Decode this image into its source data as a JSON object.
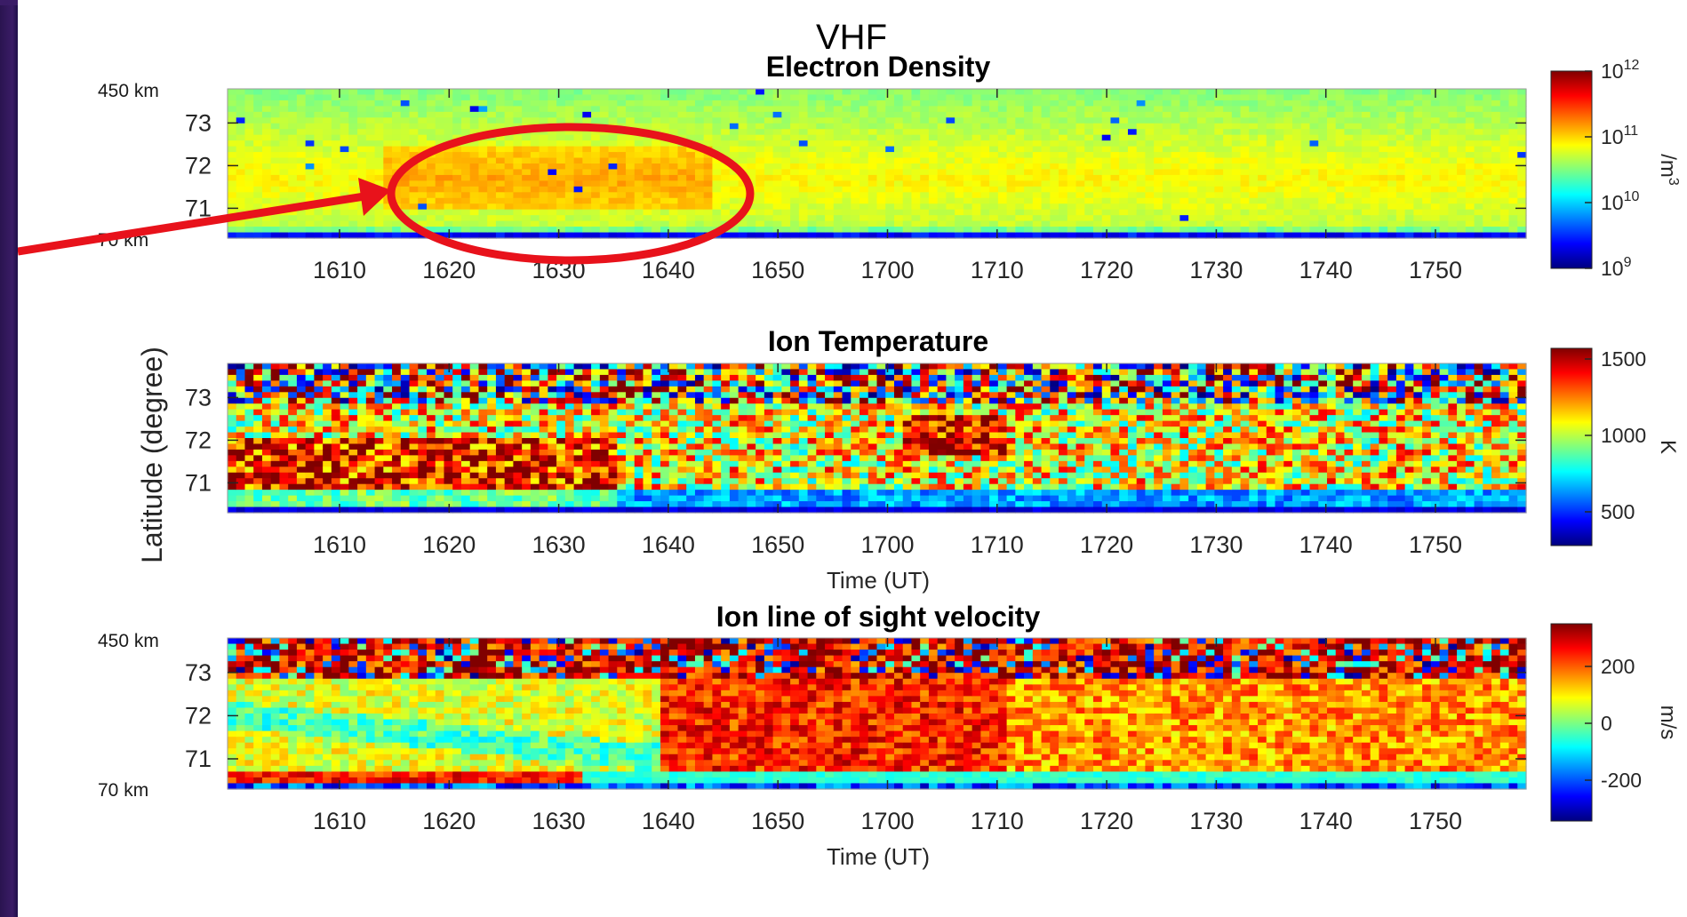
{
  "figure": {
    "main_title": "VHF",
    "annotation": "highlighted region (red ellipse with arrow) around 1620–1640 UT at ~71–72°"
  },
  "colors": {
    "annotation_red": "#e8121b",
    "axis": "#262626",
    "jet": [
      "#00007f",
      "#0000ff",
      "#007fff",
      "#00ffff",
      "#7fff7f",
      "#ffff00",
      "#ff7f00",
      "#ff0000",
      "#7f0000"
    ]
  },
  "chart_data": [
    {
      "type": "heatmap",
      "title": "Electron Density",
      "x_ticks": [
        "1610",
        "1620",
        "1630",
        "1640",
        "1650",
        "1700",
        "1710",
        "1720",
        "1730",
        "1740",
        "1750"
      ],
      "y_ticks": [
        "73",
        "72",
        "71"
      ],
      "range_labels": [
        "450 km",
        "70 km"
      ],
      "colorbar": {
        "ticks": [
          "10^12",
          "10^11",
          "10^10",
          "10^9"
        ],
        "label": "/m^3",
        "scale": "log"
      },
      "x_range_ut": [
        "1600",
        "1759"
      ],
      "y_range_deg": [
        70.3,
        73.8
      ]
    },
    {
      "type": "heatmap",
      "title": "Ion Temperature",
      "x_ticks": [
        "1610",
        "1620",
        "1630",
        "1640",
        "1650",
        "1700",
        "1710",
        "1720",
        "1730",
        "1740",
        "1750"
      ],
      "y_ticks": [
        "73",
        "72",
        "71"
      ],
      "xlabel": "Time (UT)",
      "colorbar": {
        "ticks": [
          "1500",
          "1000",
          "500"
        ],
        "label": "K"
      },
      "x_range_ut": [
        "1600",
        "1759"
      ],
      "y_range_deg": [
        70.3,
        73.8
      ]
    },
    {
      "type": "heatmap",
      "title": "Ion line of sight velocity",
      "x_ticks": [
        "1610",
        "1620",
        "1630",
        "1640",
        "1650",
        "1700",
        "1710",
        "1720",
        "1730",
        "1740",
        "1750"
      ],
      "y_ticks": [
        "73",
        "72",
        "71"
      ],
      "range_labels": [
        "450 km",
        "70 km"
      ],
      "xlabel": "Time (UT)",
      "colorbar": {
        "ticks": [
          "200",
          "0",
          "-200"
        ],
        "label": "m/s"
      },
      "x_range_ut": [
        "1600",
        "1759"
      ],
      "y_range_deg": [
        70.3,
        73.8
      ]
    }
  ],
  "shared": {
    "ylabel": "Latitude (degree)"
  }
}
